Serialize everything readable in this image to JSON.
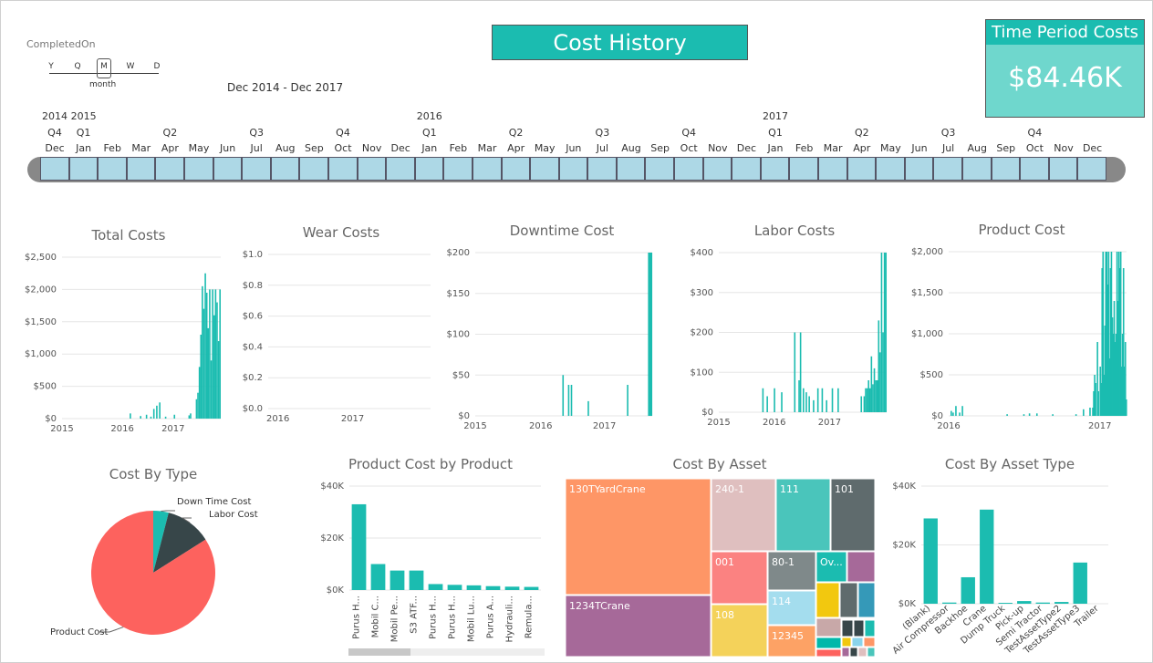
{
  "header": {
    "title": "Cost History",
    "kpi_label": "Time Period Costs",
    "kpi_value": "$84.46K"
  },
  "slicer": {
    "field": "CompletedOn",
    "granularity": [
      "Y",
      "Q",
      "M",
      "W",
      "D"
    ],
    "selected": "month",
    "range": "Dec 2014 - Dec 2017"
  },
  "timeline": {
    "years": [
      {
        "label": "2014",
        "idx": 0
      },
      {
        "label": "2015",
        "idx": 1
      },
      {
        "label": "2016",
        "idx": 13
      },
      {
        "label": "2017",
        "idx": 25
      }
    ],
    "quarters": [
      {
        "label": "Q4",
        "idx": 0
      },
      {
        "label": "Q1",
        "idx": 1
      },
      {
        "label": "Q2",
        "idx": 4
      },
      {
        "label": "Q3",
        "idx": 7
      },
      {
        "label": "Q4",
        "idx": 10
      },
      {
        "label": "Q1",
        "idx": 13
      },
      {
        "label": "Q2",
        "idx": 16
      },
      {
        "label": "Q3",
        "idx": 19
      },
      {
        "label": "Q4",
        "idx": 22
      },
      {
        "label": "Q1",
        "idx": 25
      },
      {
        "label": "Q2",
        "idx": 28
      },
      {
        "label": "Q3",
        "idx": 31
      },
      {
        "label": "Q4",
        "idx": 34
      }
    ],
    "months": [
      "Dec",
      "Jan",
      "Feb",
      "Mar",
      "Apr",
      "May",
      "Jun",
      "Jul",
      "Aug",
      "Sep",
      "Oct",
      "Nov",
      "Dec",
      "Jan",
      "Feb",
      "Mar",
      "Apr",
      "May",
      "Jun",
      "Jul",
      "Aug",
      "Sep",
      "Oct",
      "Nov",
      "Dec",
      "Jan",
      "Feb",
      "Mar",
      "Apr",
      "May",
      "Jun",
      "Jul",
      "Aug",
      "Sep",
      "Oct",
      "Nov",
      "Dec"
    ]
  },
  "chart_data": [
    {
      "type": "bar",
      "title": "Total Costs",
      "ylim": [
        0,
        2500
      ],
      "yticks": [
        "$0",
        "$500",
        "$1,000",
        "$1,500",
        "$2,000",
        "$2,500"
      ],
      "xticks": [
        {
          "label": "2015",
          "pos": 0.0
        },
        {
          "label": "2016",
          "pos": 0.38
        },
        {
          "label": "2017",
          "pos": 0.7
        }
      ],
      "values": [
        0,
        0,
        0,
        0,
        0,
        0,
        0,
        0,
        0,
        0,
        0,
        0,
        0,
        0,
        0,
        0,
        0,
        0,
        0,
        0,
        0,
        0,
        0,
        0,
        0,
        0,
        0,
        0,
        0,
        0,
        0,
        0,
        0,
        0,
        0,
        0,
        0,
        0,
        0,
        0,
        0,
        0,
        0,
        0,
        0,
        0,
        80,
        0,
        0,
        0,
        0,
        0,
        0,
        40,
        0,
        0,
        0,
        60,
        0,
        0,
        30,
        0,
        150,
        0,
        200,
        0,
        250,
        0,
        0,
        0,
        30,
        0,
        0,
        0,
        0,
        0,
        60,
        0,
        0,
        0,
        0,
        0,
        0,
        0,
        0,
        0,
        50,
        80,
        0,
        0,
        0,
        300,
        400,
        800,
        1300,
        2050,
        1700,
        2250,
        1950,
        1400,
        2000,
        900,
        2000,
        1600,
        2000,
        1800,
        1200,
        2000
      ]
    },
    {
      "type": "bar",
      "title": "Wear Costs",
      "ylim": [
        0,
        1
      ],
      "yticks": [
        "$0.0",
        "$0.2",
        "$0.4",
        "$0.6",
        "$0.8",
        "$1.0"
      ],
      "xticks": [
        {
          "label": "2016",
          "pos": 0.06
        },
        {
          "label": "2017",
          "pos": 0.52
        }
      ],
      "values": []
    },
    {
      "type": "bar",
      "title": "Downtime Cost",
      "ylim": [
        0,
        200
      ],
      "yticks": [
        "$0",
        "$50",
        "$100",
        "$150",
        "$200"
      ],
      "xticks": [
        {
          "label": "2015",
          "pos": 0.0
        },
        {
          "label": "2016",
          "pos": 0.37
        },
        {
          "label": "2017",
          "pos": 0.73
        }
      ],
      "values": [
        0,
        0,
        0,
        0,
        0,
        0,
        0,
        0,
        0,
        0,
        0,
        0,
        0,
        0,
        0,
        0,
        0,
        0,
        0,
        0,
        0,
        0,
        0,
        0,
        0,
        0,
        0,
        0,
        0,
        0,
        0,
        0,
        0,
        0,
        0,
        0,
        0,
        0,
        0,
        0,
        0,
        0,
        0,
        0,
        0,
        0,
        0,
        0,
        0,
        0,
        0,
        0,
        0,
        0,
        0,
        0,
        0,
        0,
        0,
        0,
        0,
        0,
        50,
        0,
        0,
        0,
        38,
        0,
        38,
        0,
        0,
        0,
        0,
        0,
        0,
        0,
        0,
        0,
        0,
        0,
        18,
        0,
        0,
        0,
        0,
        0,
        0,
        0,
        0,
        0,
        0,
        0,
        0,
        0,
        0,
        0,
        0,
        0,
        0,
        0,
        0,
        0,
        0,
        0,
        0,
        0,
        0,
        0,
        38,
        0,
        0,
        0,
        0,
        0,
        0,
        0,
        0,
        0,
        0,
        0,
        0,
        0,
        0,
        200,
        200,
        200
      ]
    },
    {
      "type": "bar",
      "title": "Labor Costs",
      "ylim": [
        0,
        400
      ],
      "yticks": [
        "$0",
        "$100",
        "$200",
        "$300",
        "$400"
      ],
      "xticks": [
        {
          "label": "2015",
          "pos": 0.0
        },
        {
          "label": "2016",
          "pos": 0.33
        },
        {
          "label": "2017",
          "pos": 0.66
        }
      ],
      "values": [
        0,
        0,
        0,
        0,
        0,
        0,
        0,
        0,
        0,
        0,
        0,
        0,
        0,
        0,
        0,
        0,
        0,
        0,
        0,
        0,
        0,
        0,
        0,
        0,
        0,
        0,
        0,
        0,
        0,
        0,
        60,
        0,
        0,
        40,
        0,
        0,
        0,
        0,
        60,
        0,
        0,
        0,
        0,
        50,
        0,
        0,
        0,
        0,
        0,
        0,
        0,
        0,
        200,
        0,
        0,
        80,
        200,
        0,
        60,
        0,
        50,
        0,
        40,
        0,
        0,
        30,
        0,
        0,
        60,
        0,
        0,
        60,
        0,
        0,
        30,
        0,
        0,
        0,
        60,
        0,
        0,
        0,
        60,
        0,
        0,
        0,
        0,
        0,
        0,
        0,
        0,
        0,
        0,
        0,
        0,
        0,
        0,
        0,
        40,
        0,
        40,
        60,
        60,
        80,
        60,
        140,
        70,
        110,
        80,
        80,
        230,
        150,
        400,
        200,
        400,
        400
      ]
    },
    {
      "type": "bar",
      "title": "Product Cost",
      "ylim": [
        0,
        2000
      ],
      "yticks": [
        "$0",
        "$500",
        "$1,000",
        "$1,500",
        "$2,000"
      ],
      "xticks": [
        {
          "label": "2016",
          "pos": 0.0
        },
        {
          "label": "2017",
          "pos": 0.85
        }
      ],
      "values": [
        0,
        0,
        60,
        0,
        40,
        0,
        0,
        120,
        0,
        0,
        0,
        40,
        0,
        0,
        120,
        0,
        0,
        0,
        0,
        0,
        0,
        0,
        0,
        0,
        0,
        0,
        0,
        0,
        0,
        0,
        0,
        0,
        0,
        0,
        0,
        0,
        0,
        0,
        0,
        0,
        0,
        0,
        0,
        0,
        0,
        0,
        0,
        0,
        0,
        0,
        0,
        0,
        0,
        0,
        0,
        0,
        0,
        0,
        0,
        0,
        0,
        0,
        20,
        0,
        0,
        0,
        0,
        0,
        0,
        0,
        0,
        0,
        0,
        0,
        0,
        0,
        0,
        0,
        0,
        0,
        20,
        0,
        0,
        0,
        0,
        0,
        30,
        0,
        0,
        0,
        0,
        0,
        0,
        0,
        30,
        0,
        0,
        0,
        0,
        0,
        0,
        0,
        0,
        0,
        0,
        0,
        0,
        0,
        0,
        0,
        0,
        20,
        0,
        0,
        0,
        0,
        0,
        0,
        0,
        0,
        0,
        0,
        0,
        0,
        0,
        0,
        0,
        0,
        0,
        0,
        0,
        0,
        0,
        0,
        0,
        0,
        20,
        0,
        0,
        0,
        0,
        0,
        0,
        0,
        80,
        0,
        0,
        0,
        0,
        0,
        0,
        100,
        0,
        0,
        100,
        300,
        500,
        400,
        0,
        900,
        300,
        0,
        600,
        400,
        1800,
        2000,
        500,
        1100,
        2000,
        2000,
        1600,
        2000,
        700,
        1800,
        2000,
        1200,
        1000,
        1400,
        900,
        1000,
        2000,
        1400,
        2000,
        1800,
        2000,
        600,
        1000,
        1800,
        600,
        900,
        200
      ]
    },
    {
      "type": "pie",
      "title": "Cost By Type",
      "slices": [
        {
          "label": "Down Time Cost",
          "value": 4,
          "color": "#1bbcb0"
        },
        {
          "label": "Labor Cost",
          "value": 12,
          "color": "#374649"
        },
        {
          "label": "Product Cost",
          "value": 84,
          "color": "#fd625e"
        }
      ]
    },
    {
      "type": "bar",
      "title": "Product Cost by Product",
      "ylim": [
        0,
        40000
      ],
      "yticks": [
        "$0K",
        "$20K",
        "$40K"
      ],
      "categories": [
        "Purus H...",
        "Mobil C...",
        "Mobil Pe...",
        "S3 ATF...",
        "Purus H...",
        "Purus H...",
        "Mobil Lu...",
        "Purus A...",
        "Hydrauli...",
        "Remula..."
      ],
      "values": [
        33000,
        10000,
        7500,
        7500,
        2300,
        2000,
        1800,
        1500,
        1300,
        1200
      ]
    },
    {
      "type": "treemap",
      "title": "Cost By Asset",
      "items": [
        {
          "label": "130TYardCrane",
          "color": "#fe9666"
        },
        {
          "label": "1234TCrane",
          "color": "#a66999"
        },
        {
          "label": "240-1",
          "color": "#dfbfbf"
        },
        {
          "label": "111",
          "color": "#4ac5bb"
        },
        {
          "label": "101",
          "color": "#5f6b6d"
        },
        {
          "label": "001",
          "color": "#fb8281"
        },
        {
          "label": "80-1",
          "color": "#7f898a"
        },
        {
          "label": "Ov...",
          "color": "#1bbcb0"
        },
        {
          "label": "108",
          "color": "#f4d25a"
        },
        {
          "label": "114",
          "color": "#a4ddee"
        },
        {
          "label": "12345",
          "color": "#fda265"
        }
      ]
    },
    {
      "type": "bar",
      "title": "Cost By Asset Type",
      "ylim": [
        0,
        40000
      ],
      "yticks": [
        "$0K",
        "$20K",
        "$40K"
      ],
      "categories": [
        "(Blank)",
        "Air Compressor",
        "Backhoe",
        "Crane",
        "Dump Truck",
        "Pick-up",
        "Semi Tractor",
        "TestAssetType2",
        "TestAssetType3",
        "Trailer"
      ],
      "values": [
        29000,
        400,
        9000,
        32000,
        300,
        900,
        400,
        600,
        14000,
        0
      ]
    }
  ],
  "colors": {
    "accent": "#1bbcb0",
    "accent_light": "#6fd7cd",
    "timeline_cell": "#add8e6"
  }
}
